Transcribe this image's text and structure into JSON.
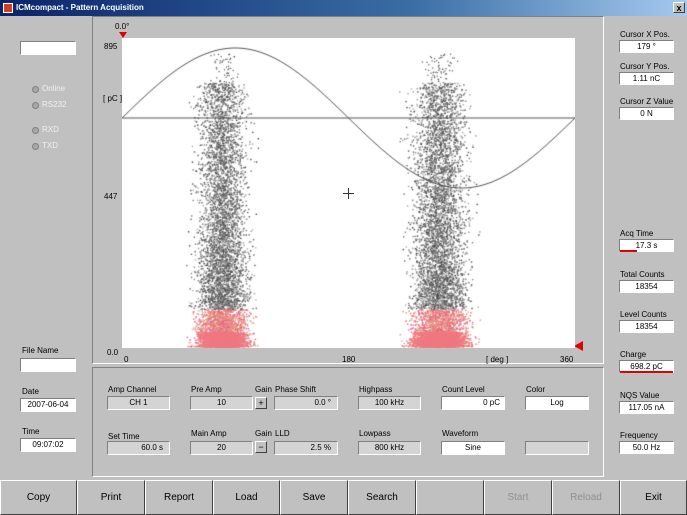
{
  "window": {
    "title": "ICMcompact - Pattern Acquisition",
    "close_glyph": "x"
  },
  "left": {
    "leds": [
      {
        "label": "Online"
      },
      {
        "label": "RS232"
      },
      {
        "label": "RXD"
      },
      {
        "label": "TXD"
      }
    ],
    "file_name_label": "File Name",
    "file_name_value": "",
    "date_label": "Date",
    "date_value": "2007-06-04",
    "time_label": "Time",
    "time_value": "09:07:02"
  },
  "plot": {
    "top_left_label": "0.0°",
    "y_ticks": [
      "895",
      "447",
      "0.0"
    ],
    "y_unit": "[ pC ]",
    "x_ticks": [
      "0",
      "180",
      "360"
    ],
    "x_unit": "[ deg ]"
  },
  "controls": {
    "amp_channel_label": "Amp Channel",
    "amp_channel_value": "CH 1",
    "pre_amp_label": "Pre Amp",
    "pre_amp_value": "10",
    "gain_label_1": "Gain",
    "gain_plus": "+",
    "phase_shift_label": "Phase Shift",
    "phase_shift_value": "0.0 °",
    "highpass_label": "Highpass",
    "highpass_value": "100 kHz",
    "count_level_label": "Count Level",
    "count_level_value": "0 pC",
    "color_label": "Color",
    "color_value": "Log",
    "set_time_label": "Set Time",
    "set_time_value": "60.0  s",
    "main_amp_label": "Main Amp",
    "main_amp_value": "20",
    "gain_label_2": "Gain",
    "gain_minus": "−",
    "lld_label": "LLD",
    "lld_value": "2.5 %",
    "lowpass_label": "Lowpass",
    "lowpass_value": "800 kHz",
    "waveform_label": "Waveform",
    "waveform_value": "Sine"
  },
  "right": {
    "cursor_x_label": "Cursor X Pos.",
    "cursor_x_value": "179 °",
    "cursor_y_label": "Cursor Y Pos.",
    "cursor_y_value": "1.11 nC",
    "cursor_z_label": "Cursor Z Value",
    "cursor_z_value": "0 N",
    "acq_time_label": "Acq Time",
    "acq_time_value": "17.3 s",
    "total_counts_label": "Total Counts",
    "total_counts_value": "18354",
    "level_counts_label": "Level Counts",
    "level_counts_value": "18354",
    "charge_label": "Charge",
    "charge_value": "698.2 pC",
    "nqs_label": "NQS Value",
    "nqs_value": "117.05 nA",
    "frequency_label": "Frequency",
    "frequency_value": "50.0 Hz"
  },
  "buttons": {
    "copy": "Copy",
    "print": "Print",
    "report": "Report",
    "load": "Load",
    "save": "Save",
    "search": "Search",
    "start": "Start",
    "reload": "Reload",
    "exit": "Exit"
  }
}
